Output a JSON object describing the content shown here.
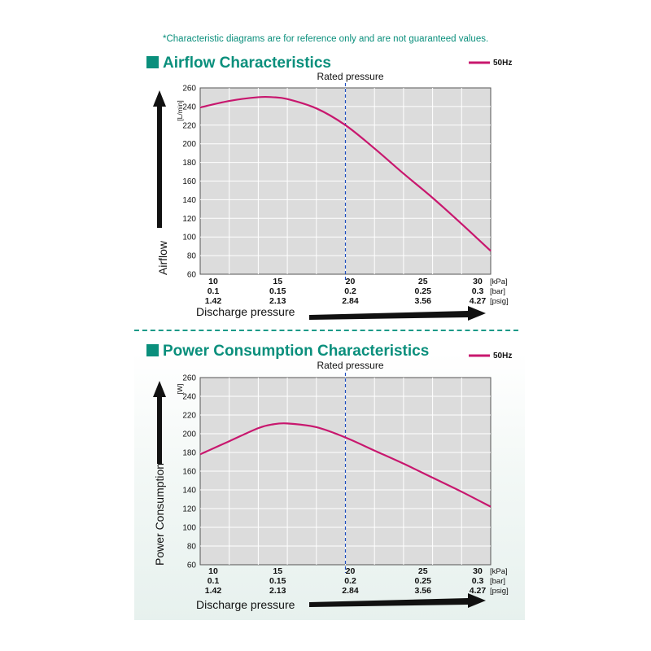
{
  "disclaimer": "*Characteristic diagrams are for reference only and are not guaranteed values.",
  "colors": {
    "accent": "#0a8f7c",
    "series": "#c8176e",
    "rated_line": "#1f4fc0",
    "plot_bg": "#dcdcdc"
  },
  "chart_data": [
    {
      "type": "line",
      "title": "Airflow Characteristics",
      "ylabel": "Airflow",
      "yunit": "[L/min]",
      "xlabel": "Discharge pressure",
      "legend": "top-right",
      "ylim": [
        60,
        260
      ],
      "yticks": [
        60,
        80,
        100,
        120,
        140,
        160,
        180,
        200,
        220,
        240,
        260
      ],
      "xlim": [
        10,
        30
      ],
      "xticks": [
        10,
        15,
        20,
        25,
        30
      ],
      "xtick_rows": [
        {
          "unit": "[kPa]",
          "labels": [
            "10",
            "15",
            "20",
            "25",
            "30"
          ]
        },
        {
          "unit": "[bar]",
          "labels": [
            "0.1",
            "0.15",
            "0.2",
            "0.25",
            "0.3"
          ]
        },
        {
          "unit": "[psig]",
          "labels": [
            "1.42",
            "2.13",
            "2.84",
            "3.56",
            "4.27"
          ]
        }
      ],
      "rated_pressure": {
        "x": 20,
        "label": "Rated pressure"
      },
      "grid": true,
      "series": [
        {
          "name": "50Hz",
          "x": [
            10,
            12,
            14,
            15,
            16,
            18,
            20,
            22,
            24,
            26,
            28,
            30
          ],
          "y": [
            239,
            246,
            250,
            250,
            248,
            238,
            220,
            195,
            168,
            142,
            114,
            85
          ]
        }
      ]
    },
    {
      "type": "line",
      "title": "Power Consumption Characteristics",
      "ylabel": "Power Consumption",
      "yunit": "[W]",
      "xlabel": "Discharge pressure",
      "legend": "top-right",
      "ylim": [
        60,
        260
      ],
      "yticks": [
        60,
        80,
        100,
        120,
        140,
        160,
        180,
        200,
        220,
        240,
        260
      ],
      "xlim": [
        10,
        30
      ],
      "xticks": [
        10,
        15,
        20,
        25,
        30
      ],
      "xtick_rows": [
        {
          "unit": "[kPa]",
          "labels": [
            "10",
            "15",
            "20",
            "25",
            "30"
          ]
        },
        {
          "unit": "[bar]",
          "labels": [
            "0.1",
            "0.15",
            "0.2",
            "0.25",
            "0.3"
          ]
        },
        {
          "unit": "[psig]",
          "labels": [
            "1.42",
            "2.13",
            "2.84",
            "3.56",
            "4.27"
          ]
        }
      ],
      "rated_pressure": {
        "x": 20,
        "label": "Rated pressure"
      },
      "grid": true,
      "series": [
        {
          "name": "50Hz",
          "x": [
            10,
            12,
            14,
            15,
            16,
            18,
            20,
            22,
            24,
            26,
            28,
            30
          ],
          "y": [
            178,
            192,
            206,
            210,
            211,
            207,
            196,
            182,
            168,
            153,
            138,
            122
          ]
        }
      ]
    }
  ]
}
